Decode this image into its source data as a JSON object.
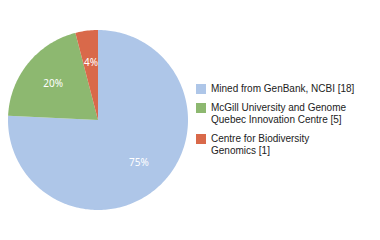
{
  "chart_data": {
    "type": "pie",
    "categories": [
      "Mined from GenBank, NCBI [18]",
      "McGill University and Genome\nQuebec Innovation Centre [5]",
      "Centre for Biodiversity\nGenomics [1]"
    ],
    "values": [
      75,
      20,
      4
    ],
    "value_labels": [
      "75%",
      "20%",
      "4%"
    ],
    "colors": [
      "#aec6e8",
      "#8db870",
      "#d9694a"
    ],
    "data_labels": true,
    "legend": "right"
  }
}
